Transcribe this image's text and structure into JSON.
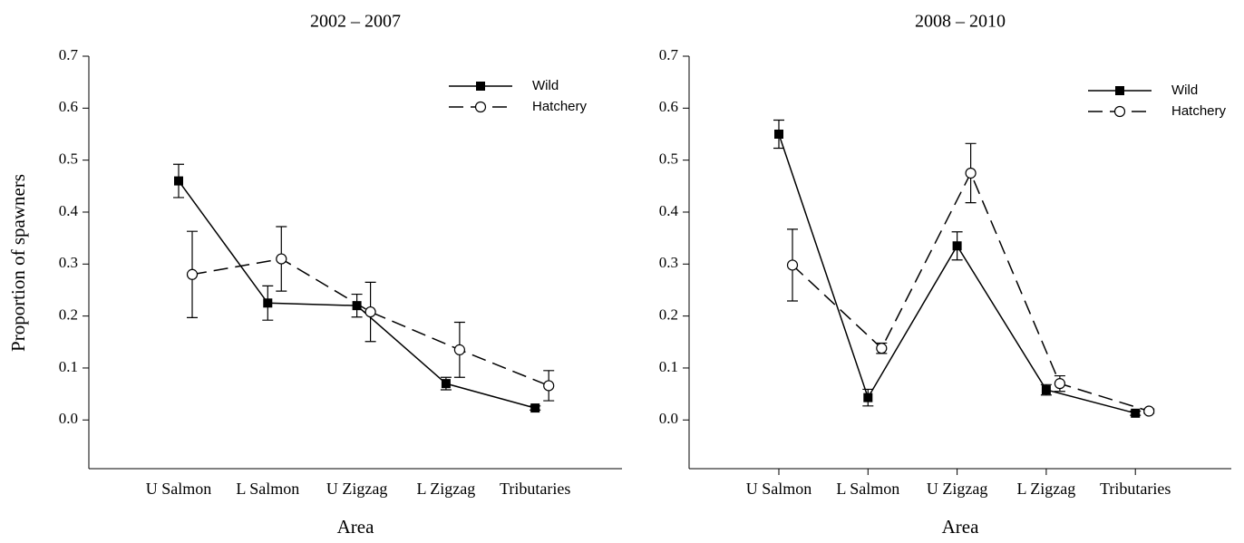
{
  "chart_data": [
    {
      "type": "line",
      "title": "2002 – 2007",
      "xlabel": "Area",
      "ylabel": "Proportion of spawners",
      "categories": [
        "U Salmon",
        "L Salmon",
        "U Zigzag",
        "L Zigzag",
        "Tributaries"
      ],
      "ylim": [
        -0.1,
        0.7
      ],
      "yticks": [
        {
          "value": 0,
          "label": "0.0"
        },
        0.1,
        0.2,
        0.3,
        0.4,
        0.5,
        0.6,
        0.7
      ],
      "xtick_marks": false,
      "legend": "upper right",
      "series": [
        {
          "name": "Wild",
          "color": "#000000",
          "marker": "square",
          "line_style": "solid",
          "values": [
            0.46,
            0.225,
            0.22,
            0.07,
            0.023
          ],
          "errors": [
            0.032,
            0.033,
            0.022,
            0.012,
            0.004
          ]
        },
        {
          "name": "Hatchery",
          "color": "#000000",
          "marker": "circle",
          "line_style": "dashed",
          "values": [
            0.28,
            0.31,
            0.208,
            0.135,
            0.066
          ],
          "errors": [
            0.083,
            0.062,
            0.057,
            0.053,
            0.029
          ]
        }
      ]
    },
    {
      "type": "line",
      "title": "2008 – 2010",
      "xlabel": "Area",
      "categories": [
        "U Salmon",
        "L Salmon",
        "U Zigzag",
        "L Zigzag",
        "Tributaries"
      ],
      "ylim": [
        -0.1,
        0.7
      ],
      "yticks": [
        {
          "value": 0,
          "label": "0.0"
        },
        0.1,
        0.2,
        0.3,
        0.4,
        0.5,
        0.6,
        0.7
      ],
      "xtick_marks": true,
      "legend": "upper right",
      "series": [
        {
          "name": "Wild",
          "color": "#000000",
          "marker": "square",
          "line_style": "solid",
          "values": [
            0.55,
            0.043,
            0.335,
            0.058,
            0.013
          ],
          "errors": [
            0.027,
            0.016,
            0.027,
            0.01,
            0.004
          ]
        },
        {
          "name": "Hatchery",
          "color": "#000000",
          "marker": "circle",
          "line_style": "dashed",
          "values": [
            0.298,
            0.138,
            0.475,
            0.07,
            0.017
          ],
          "errors": [
            0.069,
            0.01,
            0.057,
            0.015,
            0.004
          ]
        }
      ]
    }
  ]
}
